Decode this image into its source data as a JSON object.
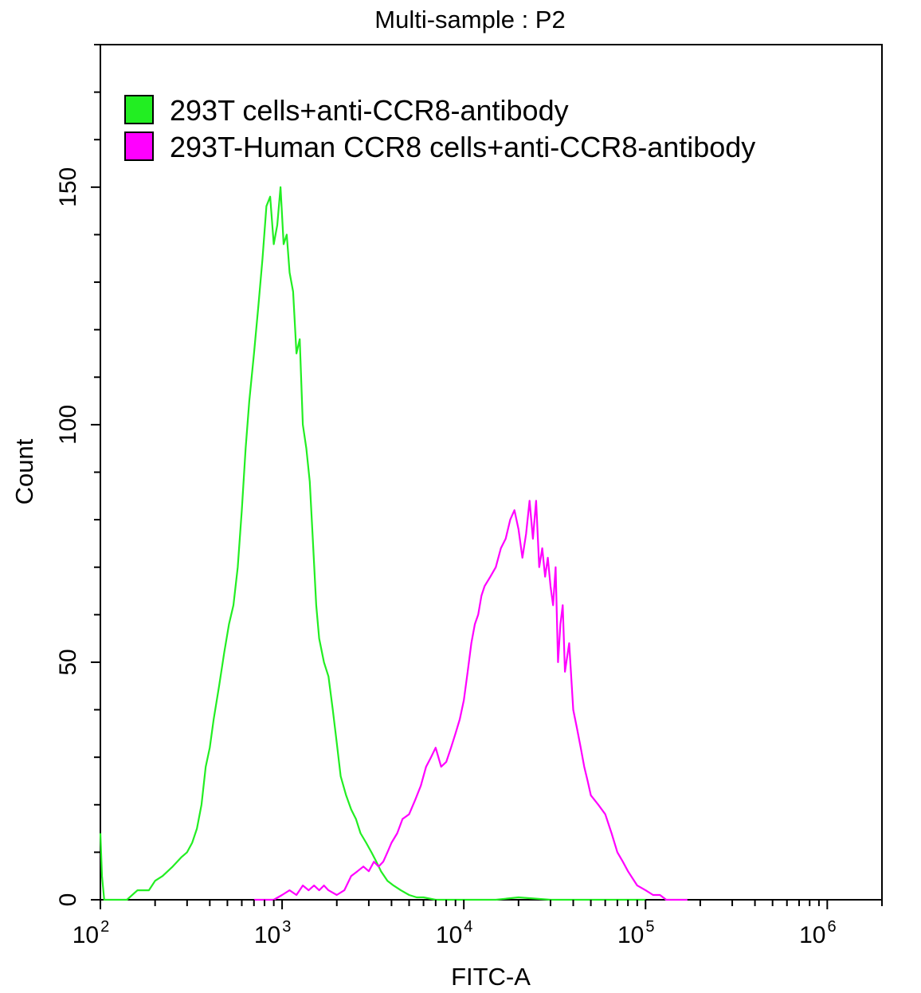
{
  "chart_data": {
    "type": "line",
    "title": "Multi-sample : P2",
    "xlabel": "FITC-A",
    "ylabel": "Count",
    "x_scale": "log",
    "xlim": [
      100,
      2000000
    ],
    "ylim": [
      0,
      180
    ],
    "grid": false,
    "legend_placement": "top-left",
    "x_ticks": [
      {
        "base": "10",
        "exp": "2",
        "value": 100
      },
      {
        "base": "10",
        "exp": "3",
        "value": 1000
      },
      {
        "base": "10",
        "exp": "4",
        "value": 10000
      },
      {
        "base": "10",
        "exp": "5",
        "value": 100000
      },
      {
        "base": "10",
        "exp": "6",
        "value": 1000000
      }
    ],
    "y_ticks": [
      {
        "label": "0",
        "value": 0
      },
      {
        "label": "50",
        "value": 50
      },
      {
        "label": "100",
        "value": 100
      },
      {
        "label": "150",
        "value": 150
      }
    ],
    "series": [
      {
        "name": "293T cells+anti-CCR8-antibody",
        "color": "#22ee22",
        "x": [
          100,
          102,
          105,
          140,
          160,
          185,
          200,
          220,
          250,
          280,
          300,
          320,
          340,
          360,
          380,
          400,
          420,
          450,
          480,
          510,
          540,
          570,
          600,
          630,
          660,
          700,
          740,
          780,
          820,
          860,
          900,
          940,
          980,
          1020,
          1060,
          1100,
          1150,
          1200,
          1250,
          1300,
          1360,
          1420,
          1480,
          1540,
          1600,
          1700,
          1800,
          1900,
          2000,
          2100,
          2250,
          2400,
          2550,
          2700,
          2900,
          3100,
          3300,
          3500,
          3800,
          4100,
          4500,
          5000,
          5500,
          6000,
          7000,
          8000,
          10000,
          15000,
          20000,
          30000,
          50000,
          100000
        ],
        "values": [
          14,
          5,
          0,
          0,
          2,
          2,
          4,
          5,
          7,
          9,
          10,
          12,
          15,
          20,
          28,
          32,
          38,
          45,
          52,
          58,
          62,
          70,
          82,
          95,
          105,
          115,
          125,
          135,
          146,
          148,
          138,
          142,
          150,
          138,
          140,
          132,
          128,
          115,
          118,
          100,
          95,
          88,
          75,
          62,
          55,
          50,
          47,
          40,
          33,
          26,
          22,
          19,
          17,
          14,
          12,
          10,
          8,
          6,
          4,
          3,
          2,
          1,
          0.5,
          0.5,
          0,
          0,
          0,
          0,
          0.5,
          0,
          0,
          0
        ]
      },
      {
        "name": "293T-Human CCR8 cells+anti-CCR8-antibody",
        "color": "#ff00ff",
        "x": [
          700,
          800,
          900,
          1000,
          1100,
          1200,
          1300,
          1400,
          1500,
          1600,
          1700,
          1800,
          2000,
          2200,
          2400,
          2600,
          2800,
          3000,
          3200,
          3400,
          3600,
          3800,
          4000,
          4300,
          4600,
          5000,
          5400,
          5800,
          6200,
          6600,
          7000,
          7500,
          8000,
          8500,
          9000,
          9500,
          10000,
          10500,
          11000,
          11500,
          12000,
          12500,
          13000,
          14000,
          15000,
          16000,
          17000,
          18000,
          19000,
          20000,
          21000,
          22000,
          23000,
          24000,
          25000,
          26000,
          27000,
          28000,
          29000,
          30000,
          31000,
          32000,
          33000,
          34000,
          35000,
          36000,
          38000,
          40000,
          42000,
          44000,
          46000,
          48000,
          50000,
          55000,
          60000,
          65000,
          70000,
          75000,
          80000,
          90000,
          100000,
          110000,
          120000,
          130000,
          150000,
          170000
        ],
        "values": [
          0,
          0,
          0,
          1,
          2,
          1,
          3,
          2,
          3,
          2,
          3,
          2,
          1,
          2,
          5,
          6,
          7,
          6,
          8,
          7,
          8,
          10,
          12,
          14,
          17,
          18,
          21,
          24,
          28,
          30,
          32,
          28,
          29,
          32,
          35,
          38,
          42,
          48,
          54,
          58,
          60,
          64,
          66,
          68,
          70,
          74,
          76,
          80,
          82,
          78,
          72,
          77,
          84,
          76,
          84,
          70,
          74,
          68,
          72,
          66,
          62,
          70,
          50,
          58,
          62,
          48,
          54,
          40,
          36,
          32,
          28,
          25,
          22,
          20,
          18,
          14,
          10,
          8,
          6,
          3,
          2,
          1,
          1,
          0,
          0,
          0
        ]
      }
    ]
  }
}
